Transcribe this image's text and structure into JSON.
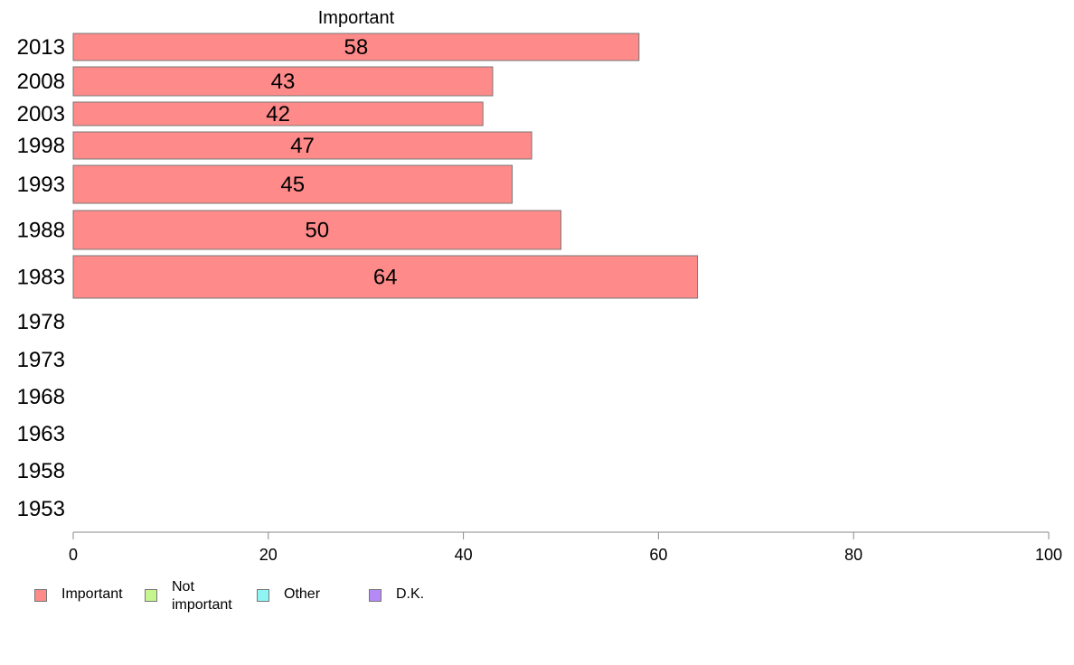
{
  "chart_data": {
    "type": "bar",
    "orientation": "horizontal",
    "column_title": "Important",
    "categories": [
      "2013",
      "2008",
      "2003",
      "1998",
      "1993",
      "1988",
      "1983",
      "1978",
      "1973",
      "1968",
      "1963",
      "1958",
      "1953"
    ],
    "series": [
      {
        "name": "Important",
        "color": "#ff8a8a",
        "values": [
          58,
          43,
          42,
          47,
          45,
          50,
          64,
          null,
          null,
          null,
          null,
          null,
          null
        ]
      }
    ],
    "xlim": [
      0,
      100
    ],
    "xticks": [
      0,
      20,
      40,
      60,
      80,
      100
    ],
    "grid": false,
    "legend_position": "bottom-left",
    "legend": [
      {
        "label": "Important",
        "color": "#ff8a8a"
      },
      {
        "label": "Not\nimportant",
        "color": "#c6f58f"
      },
      {
        "label": "Other",
        "color": "#8ff5f2"
      },
      {
        "label": "D.K.",
        "color": "#b58af7"
      }
    ]
  }
}
